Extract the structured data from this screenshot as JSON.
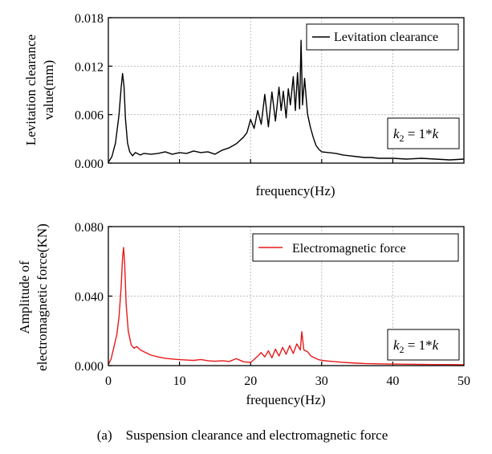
{
  "caption": "(a)    Suspension clearance and electromagnetic force",
  "chart_data": [
    {
      "type": "line",
      "xlabel": "frequency(Hz)",
      "ylabel_line1": "Levitation clearance",
      "ylabel_line2": "value(mm)",
      "xlim": [
        0,
        50
      ],
      "ylim": [
        0,
        0.018
      ],
      "yticks": [
        "0.000",
        "0.006",
        "0.012",
        "0.018"
      ],
      "xtick_labels_shown": false,
      "grid": true,
      "legend_position": "top-right",
      "annotation": {
        "k": "k",
        "sub": "2",
        "rest": " = 1*",
        "k2": "k"
      },
      "series": [
        {
          "name": "Levitation clearance",
          "color": "#000000",
          "x": [
            0,
            0.5,
            1,
            1.5,
            1.8,
            2.0,
            2.2,
            2.4,
            2.7,
            3.0,
            3.4,
            3.8,
            4.5,
            5,
            6,
            7,
            8,
            9,
            10,
            11,
            12,
            13,
            14,
            15,
            16,
            17,
            18,
            19,
            19.5,
            20,
            20.5,
            21,
            21.5,
            22,
            22.5,
            23,
            23.5,
            24,
            24.3,
            24.6,
            25,
            25.3,
            25.6,
            26,
            26.3,
            26.6,
            26.9,
            27.1,
            27.3,
            27.6,
            28,
            28.4,
            28.8,
            29.2,
            29.6,
            30,
            31,
            32,
            33,
            34,
            35,
            36,
            37,
            38,
            40,
            42,
            44,
            46,
            48,
            50
          ],
          "y": [
            0.0001,
            0.0008,
            0.0025,
            0.006,
            0.0093,
            0.0111,
            0.0095,
            0.0055,
            0.0025,
            0.0014,
            0.0009,
            0.0013,
            0.001,
            0.0012,
            0.0011,
            0.0012,
            0.0014,
            0.0011,
            0.0013,
            0.0012,
            0.0015,
            0.0013,
            0.0014,
            0.0011,
            0.0016,
            0.0019,
            0.0024,
            0.0032,
            0.0038,
            0.0054,
            0.0043,
            0.0065,
            0.0048,
            0.0085,
            0.0045,
            0.0088,
            0.0052,
            0.0094,
            0.0065,
            0.0089,
            0.0056,
            0.0092,
            0.0072,
            0.0107,
            0.0065,
            0.0112,
            0.0067,
            0.0152,
            0.0072,
            0.0105,
            0.0061,
            0.0045,
            0.0032,
            0.0022,
            0.0017,
            0.0014,
            0.0013,
            0.0012,
            0.001,
            0.0009,
            0.0008,
            0.0007,
            0.0007,
            0.0006,
            0.0006,
            0.0005,
            0.0006,
            0.0005,
            0.0004,
            0.0005
          ]
        }
      ]
    },
    {
      "type": "line",
      "xlabel": "frequency(Hz)",
      "ylabel_line1": "Amplitude of",
      "ylabel_line2": "electromagnetic force(KN)",
      "xlim": [
        0,
        50
      ],
      "ylim": [
        0,
        0.08
      ],
      "xticks": [
        "0",
        "10",
        "20",
        "30",
        "40",
        "50"
      ],
      "yticks": [
        "0.000",
        "0.040",
        "0.080"
      ],
      "grid": true,
      "legend_position": "top-right",
      "annotation": {
        "k": "k",
        "sub": "2",
        "rest": " = 1*",
        "k2": "k"
      },
      "series": [
        {
          "name": "Electromagnetic force",
          "color": "#e8191a",
          "x": [
            0,
            0.4,
            0.8,
            1.2,
            1.5,
            1.8,
            2.0,
            2.15,
            2.3,
            2.5,
            2.8,
            3.2,
            3.6,
            4,
            4.5,
            5,
            6,
            7,
            8,
            9,
            10,
            11,
            12,
            13,
            14,
            15,
            16,
            17,
            18,
            19,
            20,
            20.5,
            21,
            21.5,
            22,
            22.5,
            23,
            23.5,
            24,
            24.5,
            25,
            25.5,
            26,
            26.5,
            27,
            27.2,
            27.5,
            28,
            28.5,
            29,
            29.5,
            30,
            31,
            32,
            33,
            34,
            35,
            36,
            38,
            40,
            42,
            44,
            46,
            48,
            50
          ],
          "y": [
            0.0005,
            0.004,
            0.011,
            0.018,
            0.028,
            0.045,
            0.062,
            0.068,
            0.058,
            0.035,
            0.02,
            0.012,
            0.01,
            0.011,
            0.009,
            0.008,
            0.006,
            0.005,
            0.0042,
            0.0038,
            0.0034,
            0.0032,
            0.003,
            0.0035,
            0.0028,
            0.0025,
            0.0028,
            0.0024,
            0.004,
            0.0022,
            0.0018,
            0.0035,
            0.0055,
            0.0075,
            0.005,
            0.0085,
            0.0045,
            0.0095,
            0.0055,
            0.0105,
            0.0065,
            0.0115,
            0.007,
            0.0125,
            0.009,
            0.0195,
            0.009,
            0.008,
            0.0055,
            0.0045,
            0.0035,
            0.003,
            0.0026,
            0.0022,
            0.0019,
            0.0016,
            0.0014,
            0.0012,
            0.001,
            0.0009,
            0.0008,
            0.0007,
            0.0006,
            0.0006,
            0.0005
          ]
        }
      ]
    }
  ]
}
